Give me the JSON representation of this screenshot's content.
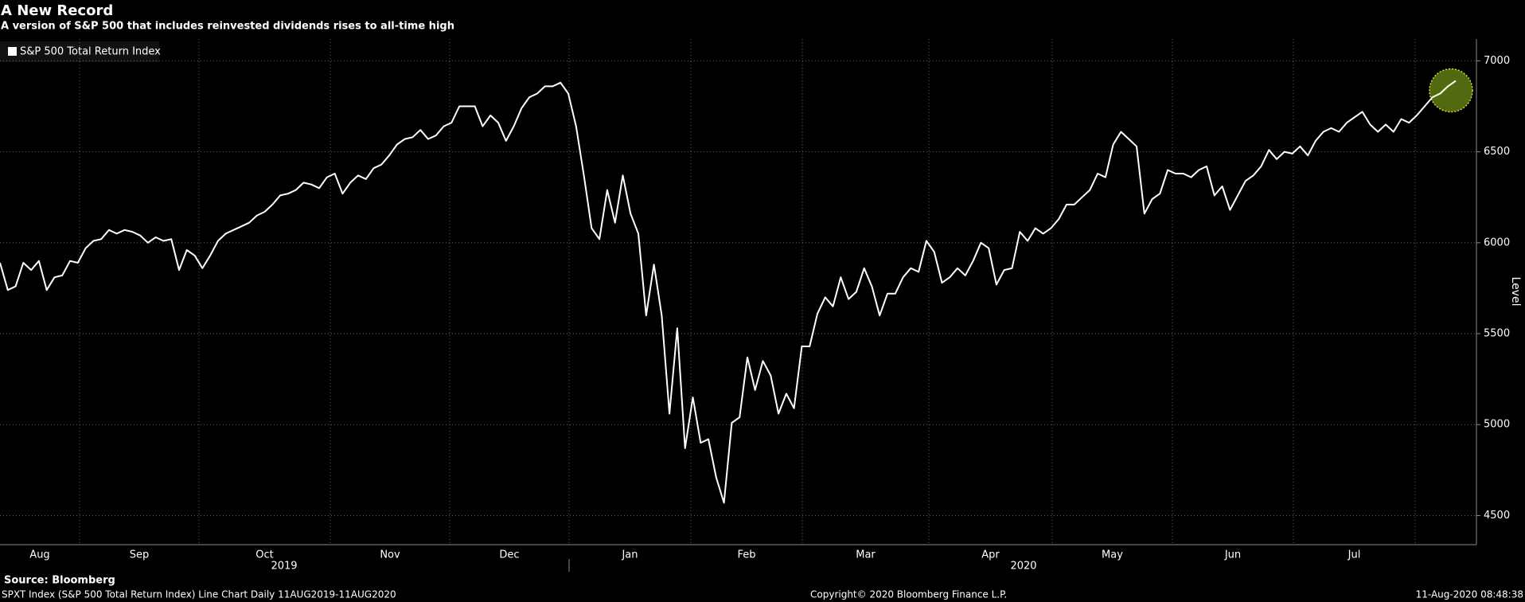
{
  "chart_data": {
    "type": "line",
    "title": "A New Record",
    "subtitle": "A version of S&P 500 that includes reinvested dividends rises to all-time high",
    "y_axis_label": "Level",
    "months": [
      "Aug",
      "Sep",
      "Oct",
      "Nov",
      "Dec",
      "Jan",
      "Feb",
      "Mar",
      "Apr",
      "May",
      "Jun",
      "Jul"
    ],
    "years": [
      "2019",
      "2020"
    ],
    "ylim": [
      4340,
      7120
    ],
    "yticks": [
      4500,
      5000,
      5500,
      6000,
      6500,
      7000
    ],
    "grid": true,
    "legend": "top-left",
    "series": [
      {
        "name": "S&P 500 Total Return Index",
        "color": "#ffffff",
        "values": [
          5890,
          5740,
          5760,
          5890,
          5850,
          5900,
          5740,
          5810,
          5820,
          5900,
          5890,
          5970,
          6010,
          6020,
          6070,
          6050,
          6070,
          6060,
          6040,
          6000,
          6030,
          6010,
          6020,
          5850,
          5960,
          5930,
          5860,
          5930,
          6010,
          6050,
          6070,
          6090,
          6110,
          6150,
          6170,
          6210,
          6260,
          6270,
          6290,
          6330,
          6320,
          6300,
          6360,
          6380,
          6270,
          6330,
          6370,
          6350,
          6410,
          6430,
          6480,
          6540,
          6570,
          6580,
          6620,
          6570,
          6590,
          6640,
          6660,
          6750,
          6750,
          6750,
          6640,
          6700,
          6660,
          6560,
          6640,
          6740,
          6800,
          6820,
          6860,
          6860,
          6880,
          6820,
          6640,
          6370,
          6080,
          6020,
          6290,
          6110,
          6370,
          6160,
          6050,
          5600,
          5880,
          5600,
          5060,
          5530,
          4870,
          5150,
          4900,
          4920,
          4710,
          4570,
          5010,
          5040,
          5370,
          5190,
          5350,
          5270,
          5060,
          5170,
          5090,
          5430,
          5430,
          5610,
          5700,
          5650,
          5810,
          5690,
          5730,
          5860,
          5760,
          5600,
          5720,
          5720,
          5810,
          5860,
          5840,
          6010,
          5950,
          5780,
          5810,
          5860,
          5820,
          5900,
          6000,
          5970,
          5770,
          5850,
          5860,
          6060,
          6010,
          6080,
          6050,
          6080,
          6130,
          6210,
          6210,
          6250,
          6290,
          6380,
          6360,
          6540,
          6610,
          6570,
          6530,
          6160,
          6240,
          6270,
          6400,
          6380,
          6380,
          6360,
          6400,
          6420,
          6260,
          6310,
          6180,
          6260,
          6340,
          6370,
          6420,
          6510,
          6460,
          6500,
          6490,
          6530,
          6480,
          6560,
          6610,
          6630,
          6610,
          6660,
          6690,
          6720,
          6650,
          6610,
          6650,
          6610,
          6680,
          6660,
          6700,
          6750,
          6800,
          6820,
          6860,
          6890
        ]
      }
    ]
  },
  "footer": {
    "source": "Source: Bloomberg",
    "description": "SPXT Index (S&P 500 Total Return Index) Line Chart  Daily 11AUG2019-11AUG2020",
    "copyright": "Copyright© 2020 Bloomberg Finance L.P.",
    "timestamp": "11-Aug-2020 08:48:38"
  }
}
